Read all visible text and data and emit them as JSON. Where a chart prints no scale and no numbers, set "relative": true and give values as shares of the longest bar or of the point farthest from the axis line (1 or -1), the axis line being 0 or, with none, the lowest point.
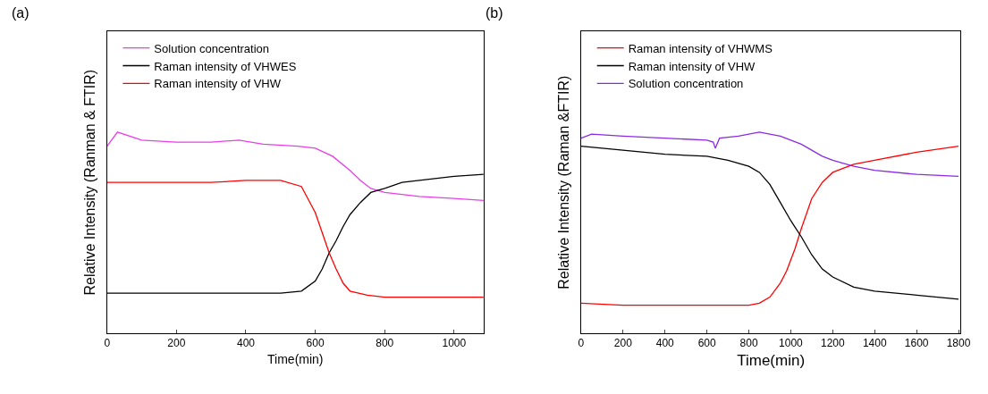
{
  "chart_data": [
    {
      "type": "line",
      "relative": true,
      "title": "(a)",
      "xlabel": "Time(min)",
      "ylabel": "Relative Intensity (Ranman & FTIR)",
      "xlim": [
        0,
        1085
      ],
      "xticks": [
        0,
        200,
        400,
        600,
        800,
        1000
      ],
      "legend": "top left",
      "marker": "none",
      "line_style": "solid",
      "series": [
        {
          "name": "Solution concentration",
          "color": "#e83ee8",
          "x": [
            0,
            30,
            100,
            200,
            300,
            380,
            450,
            550,
            600,
            650,
            700,
            730,
            760,
            800,
            850,
            900,
            1000,
            1085
          ],
          "values": [
            0.93,
            1.0,
            0.96,
            0.95,
            0.95,
            0.96,
            0.94,
            0.93,
            0.92,
            0.88,
            0.81,
            0.76,
            0.72,
            0.7,
            0.69,
            0.68,
            0.67,
            0.66
          ]
        },
        {
          "name": "Raman intensity of VHWES",
          "color": "#000000",
          "x": [
            0,
            200,
            400,
            500,
            560,
            600,
            620,
            640,
            660,
            680,
            700,
            730,
            760,
            800,
            850,
            900,
            1000,
            1085
          ],
          "values": [
            0.2,
            0.2,
            0.2,
            0.2,
            0.21,
            0.26,
            0.32,
            0.4,
            0.46,
            0.53,
            0.59,
            0.65,
            0.7,
            0.72,
            0.75,
            0.76,
            0.78,
            0.79
          ]
        },
        {
          "name": "Raman intensity of VHW",
          "color": "#ff0000",
          "x": [
            0,
            100,
            200,
            300,
            400,
            500,
            560,
            600,
            620,
            640,
            660,
            680,
            700,
            750,
            800,
            900,
            1000,
            1085
          ],
          "values": [
            0.75,
            0.75,
            0.75,
            0.75,
            0.76,
            0.76,
            0.73,
            0.6,
            0.5,
            0.4,
            0.32,
            0.25,
            0.21,
            0.19,
            0.18,
            0.18,
            0.18,
            0.18
          ]
        }
      ]
    },
    {
      "type": "line",
      "relative": true,
      "title": "(b)",
      "xlabel": "Time(min)",
      "ylabel": "Relative Intensity (Raman &FTIR)",
      "xlim": [
        0,
        1810
      ],
      "xticks": [
        0,
        200,
        400,
        600,
        800,
        1000,
        1200,
        1400,
        1600,
        1800
      ],
      "legend": "top left",
      "marker": "none",
      "line_style": "solid",
      "series": [
        {
          "name": "Raman intensity of VHWMS",
          "color": "#ff0000",
          "x": [
            0,
            200,
            400,
            600,
            800,
            850,
            900,
            950,
            980,
            1020,
            1050,
            1100,
            1150,
            1200,
            1300,
            1400,
            1600,
            1800
          ],
          "values": [
            0.15,
            0.14,
            0.14,
            0.14,
            0.14,
            0.15,
            0.18,
            0.25,
            0.31,
            0.42,
            0.52,
            0.67,
            0.75,
            0.8,
            0.84,
            0.86,
            0.9,
            0.93
          ]
        },
        {
          "name": "Raman intensity of VHW",
          "color": "#000000",
          "x": [
            0,
            200,
            400,
            600,
            700,
            800,
            850,
            900,
            950,
            1000,
            1050,
            1100,
            1150,
            1200,
            1300,
            1400,
            1600,
            1800
          ],
          "values": [
            0.93,
            0.91,
            0.89,
            0.88,
            0.86,
            0.83,
            0.8,
            0.74,
            0.65,
            0.56,
            0.48,
            0.39,
            0.32,
            0.28,
            0.23,
            0.21,
            0.19,
            0.17
          ]
        },
        {
          "name": "Solution concentration",
          "color": "#8a2be2",
          "x": [
            0,
            50,
            200,
            400,
            600,
            630,
            640,
            660,
            750,
            850,
            950,
            1000,
            1050,
            1100,
            1150,
            1200,
            1300,
            1400,
            1600,
            1800
          ],
          "values": [
            0.97,
            0.99,
            0.98,
            0.97,
            0.96,
            0.95,
            0.92,
            0.97,
            0.98,
            1.0,
            0.98,
            0.96,
            0.94,
            0.91,
            0.88,
            0.86,
            0.83,
            0.81,
            0.79,
            0.78
          ]
        }
      ]
    }
  ]
}
